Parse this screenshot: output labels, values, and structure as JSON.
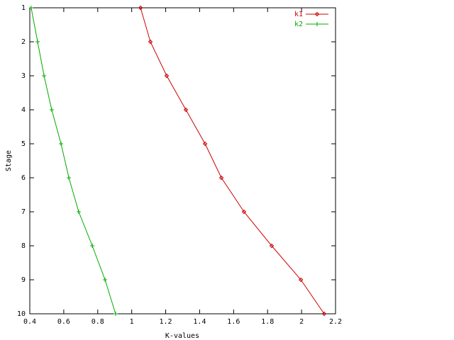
{
  "chart_data": {
    "type": "line",
    "x_label": "K-values",
    "y_label": "Stage",
    "xlim": [
      0.4,
      2.2
    ],
    "xticks": [
      0.4,
      0.6,
      0.8,
      1,
      1.2,
      1.4,
      1.6,
      1.8,
      2,
      2.2
    ],
    "ylim": [
      1,
      10
    ],
    "yticks": [
      1,
      2,
      3,
      4,
      5,
      6,
      7,
      8,
      9,
      10
    ],
    "y_inverted": true,
    "grid": false,
    "legend_position": "top-right",
    "series": [
      {
        "name": "k1",
        "color": "#cc0000",
        "marker": "diamond",
        "x": [
          1.052,
          1.11,
          1.206,
          1.319,
          1.432,
          1.528,
          1.661,
          1.824,
          1.996,
          2.133
        ],
        "y": [
          1,
          2,
          3,
          4,
          5,
          6,
          7,
          8,
          9,
          10
        ]
      },
      {
        "name": "k2",
        "color": "#00aa00",
        "marker": "plus",
        "x": [
          0.408,
          0.446,
          0.484,
          0.529,
          0.584,
          0.63,
          0.688,
          0.768,
          0.843,
          0.905
        ],
        "y": [
          1,
          2,
          3,
          4,
          5,
          6,
          7,
          8,
          9,
          10
        ]
      }
    ]
  }
}
